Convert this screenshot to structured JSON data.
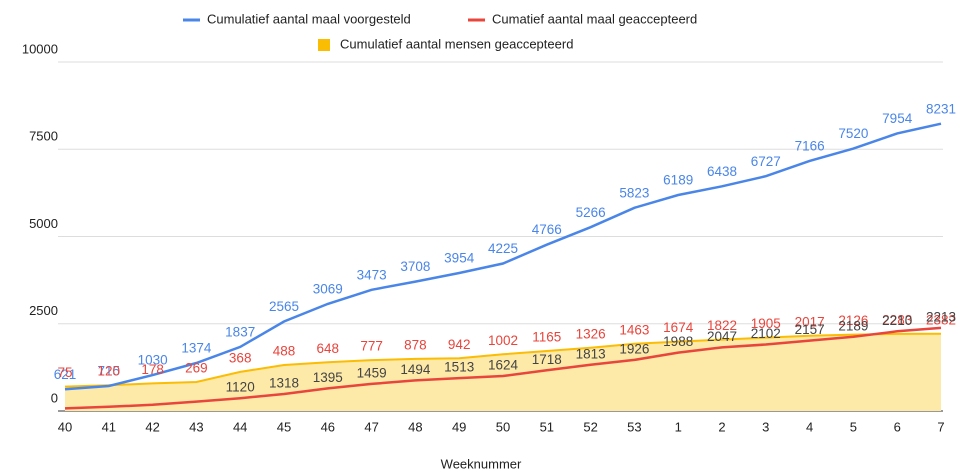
{
  "chart_data": {
    "type": "line",
    "x_label": "Weeknummer",
    "categories": [
      "40",
      "41",
      "42",
      "43",
      "44",
      "45",
      "46",
      "47",
      "48",
      "49",
      "50",
      "51",
      "52",
      "53",
      "1",
      "2",
      "3",
      "4",
      "5",
      "6",
      "7"
    ],
    "series": [
      {
        "name": "Cumulatief aantal maal voorgesteld",
        "color": "#4a86e8",
        "values": [
          621,
          715,
          1030,
          1374,
          1837,
          2565,
          3069,
          3473,
          3708,
          3954,
          4225,
          4766,
          5266,
          5823,
          6189,
          6438,
          6727,
          7166,
          7520,
          7954,
          8231
        ]
      },
      {
        "name": "Cumatief aantal maal geaccepteerd",
        "color": "#e8453c",
        "values": [
          75,
          120,
          178,
          269,
          368,
          488,
          648,
          777,
          878,
          942,
          1002,
          1165,
          1326,
          1463,
          1674,
          1822,
          1905,
          2017,
          2126,
          2283,
          2382
        ]
      },
      {
        "name": "Cumulatief aantal mensen geaccepteerd",
        "color": "#fbbc04",
        "area": true,
        "values": [
          700,
          740,
          790,
          830,
          1120,
          1318,
          1395,
          1459,
          1494,
          1513,
          1624,
          1718,
          1813,
          1926,
          1988,
          2047,
          2102,
          2157,
          2189,
          2210,
          2213
        ],
        "value_labels": [
          null,
          null,
          null,
          null,
          "1120",
          "1318",
          "1395",
          "1459",
          "1494",
          "1513",
          "1624",
          "1718",
          "1813",
          "1926",
          "1988",
          "2047",
          "2102",
          "2157",
          "2189",
          "2210",
          "2213"
        ]
      }
    ],
    "ylim": [
      0,
      10000
    ],
    "yticks": [
      0,
      2500,
      5000,
      7500,
      10000
    ],
    "grid": true
  }
}
